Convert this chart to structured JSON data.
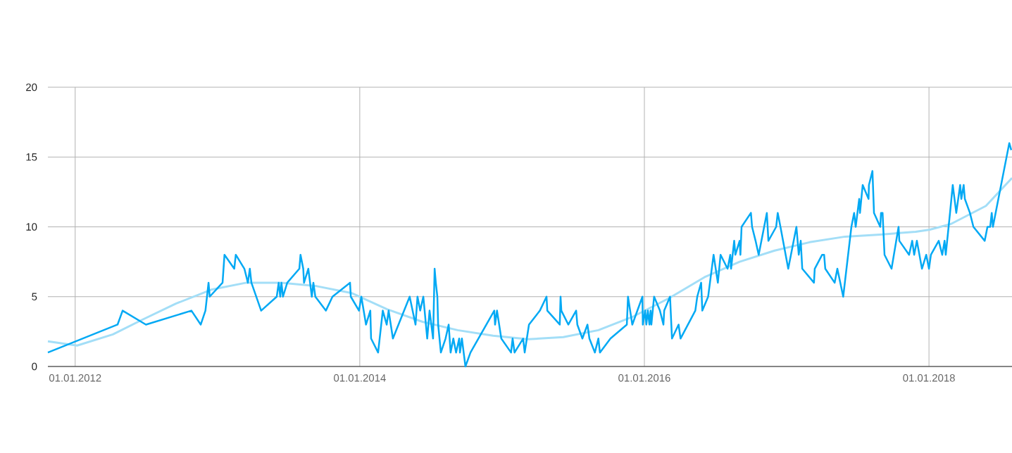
{
  "chart_data": {
    "type": "line",
    "xlim": [
      "2011-10-23",
      "2018-08-02"
    ],
    "ylim": [
      0,
      20
    ],
    "xticks": [
      {
        "value": "2012-01-01",
        "label": "01.01.2012"
      },
      {
        "value": "2014-01-01",
        "label": "01.01.2014"
      },
      {
        "value": "2016-01-01",
        "label": "01.01.2016"
      },
      {
        "value": "2018-01-01",
        "label": "01.01.2018"
      }
    ],
    "yticks": [
      0,
      5,
      10,
      15,
      20
    ],
    "grid": true,
    "series": [
      {
        "color": "#a3def7",
        "x": [
          "2011-10-23",
          "2012-01-06",
          "2012-04-07",
          "2012-06-18",
          "2012-09-16",
          "2012-12-16",
          "2013-03-16",
          "2013-06-14",
          "2013-09-13",
          "2013-12-12",
          "2014-03-12",
          "2014-06-11",
          "2014-09-09",
          "2014-12-09",
          "2015-03-09",
          "2015-06-07",
          "2015-09-05",
          "2015-12-05",
          "2016-03-05",
          "2016-06-04",
          "2016-09-02",
          "2016-12-01",
          "2017-03-01",
          "2017-05-31",
          "2017-08-29",
          "2017-11-28",
          "2018-01-03",
          "2018-02-26",
          "2018-05-27",
          "2018-08-02"
        ],
        "values": [
          1.8,
          1.5,
          2.3,
          3.3,
          4.5,
          5.5,
          6.0,
          6.0,
          5.75,
          5.25,
          4.1,
          3.2,
          2.6,
          2.2,
          1.95,
          2.1,
          2.6,
          3.6,
          4.9,
          6.4,
          7.5,
          8.3,
          8.9,
          9.3,
          9.45,
          9.65,
          9.8,
          10.2,
          11.5,
          13.5
        ]
      },
      {
        "color": "#03a9f4",
        "x": [
          "2011-10-23",
          "2012-04-19",
          "2012-05-02",
          "2012-07-01",
          "2012-10-26",
          "2012-11-19",
          "2012-12-01",
          "2012-12-09",
          "2012-12-12",
          "2013-01-14",
          "2013-01-19",
          "2013-02-13",
          "2013-02-17",
          "2013-03-11",
          "2013-03-20",
          "2013-03-25",
          "2013-03-29",
          "2013-04-23",
          "2013-06-02",
          "2013-06-07",
          "2013-06-11",
          "2013-06-14",
          "2013-06-18",
          "2013-06-29",
          "2013-07-30",
          "2013-08-02",
          "2013-08-09",
          "2013-08-11",
          "2013-08-22",
          "2013-08-31",
          "2013-09-04",
          "2013-09-09",
          "2013-10-06",
          "2013-10-23",
          "2013-12-07",
          "2013-12-09",
          "2013-12-30",
          "2014-01-05",
          "2014-01-17",
          "2014-01-28",
          "2014-01-30",
          "2014-02-17",
          "2014-03-01",
          "2014-03-11",
          "2014-03-16",
          "2014-03-27",
          "2014-05-09",
          "2014-05-24",
          "2014-05-29",
          "2014-06-05",
          "2014-06-13",
          "2014-06-23",
          "2014-06-29",
          "2014-07-08",
          "2014-07-12",
          "2014-07-15",
          "2014-07-19",
          "2014-07-21",
          "2014-07-28",
          "2014-08-09",
          "2014-08-17",
          "2014-08-22",
          "2014-08-29",
          "2014-09-05",
          "2014-09-13",
          "2014-09-15",
          "2014-09-20",
          "2014-09-29",
          "2014-10-12",
          "2014-12-12",
          "2014-12-14",
          "2014-12-19",
          "2014-12-30",
          "2015-01-24",
          "2015-01-28",
          "2015-02-02",
          "2015-02-24",
          "2015-02-28",
          "2015-03-11",
          "2015-04-08",
          "2015-04-25",
          "2015-04-27",
          "2015-05-29",
          "2015-05-31",
          "2015-06-02",
          "2015-06-20",
          "2015-07-10",
          "2015-07-13",
          "2015-07-26",
          "2015-08-08",
          "2015-08-13",
          "2015-08-27",
          "2015-09-05",
          "2015-09-09",
          "2015-10-06",
          "2015-11-17",
          "2015-11-20",
          "2015-12-01",
          "2015-12-27",
          "2015-12-28",
          "2016-01-03",
          "2016-01-06",
          "2016-01-10",
          "2016-01-14",
          "2016-01-17",
          "2016-01-19",
          "2016-01-26",
          "2016-02-10",
          "2016-02-19",
          "2016-02-21",
          "2016-03-07",
          "2016-03-12",
          "2016-03-29",
          "2016-04-03",
          "2016-05-11",
          "2016-05-16",
          "2016-05-26",
          "2016-05-29",
          "2016-06-13",
          "2016-06-27",
          "2016-07-08",
          "2016-07-15",
          "2016-08-02",
          "2016-08-09",
          "2016-08-11",
          "2016-08-19",
          "2016-08-22",
          "2016-09-02",
          "2016-09-04",
          "2016-09-07",
          "2016-10-01",
          "2016-10-04",
          "2016-10-13",
          "2016-10-21",
          "2016-11-11",
          "2016-11-15",
          "2016-12-05",
          "2016-12-09",
          "2016-12-16",
          "2017-01-05",
          "2017-01-19",
          "2017-01-26",
          "2017-02-01",
          "2017-02-06",
          "2017-02-10",
          "2017-03-12",
          "2017-03-14",
          "2017-04-02",
          "2017-04-07",
          "2017-04-10",
          "2017-05-04",
          "2017-05-11",
          "2017-05-26",
          "2017-06-16",
          "2017-06-23",
          "2017-06-27",
          "2017-07-06",
          "2017-07-08",
          "2017-07-15",
          "2017-07-30",
          "2017-07-31",
          "2017-08-09",
          "2017-08-13",
          "2017-08-29",
          "2017-08-31",
          "2017-09-04",
          "2017-09-09",
          "2017-09-27",
          "2017-10-15",
          "2017-10-17",
          "2017-11-11",
          "2017-11-19",
          "2017-11-24",
          "2017-12-01",
          "2017-12-14",
          "2017-12-25",
          "2018-01-01",
          "2018-01-06",
          "2018-01-26",
          "2018-02-04",
          "2018-02-10",
          "2018-02-13",
          "2018-02-24",
          "2018-03-03",
          "2018-03-12",
          "2018-03-22",
          "2018-03-25",
          "2018-03-31",
          "2018-04-03",
          "2018-04-16",
          "2018-04-25",
          "2018-05-24",
          "2018-05-31",
          "2018-06-07",
          "2018-06-11",
          "2018-06-14",
          "2018-07-26",
          "2018-07-31"
        ],
        "values": [
          1,
          3,
          4,
          3,
          4,
          3,
          4,
          6,
          5,
          6,
          8,
          7,
          8,
          7,
          6,
          7,
          6,
          4,
          5,
          6,
          5,
          6,
          5,
          6,
          7,
          8,
          7,
          6,
          7,
          5,
          6,
          5,
          4,
          5,
          6,
          5,
          4,
          5,
          3,
          4,
          2,
          1,
          4,
          3,
          4,
          2,
          5,
          3,
          5,
          4,
          5,
          2,
          4,
          2,
          7,
          6,
          5,
          3,
          1,
          2,
          3,
          1,
          2,
          1,
          2,
          1,
          2,
          0,
          1,
          4,
          3,
          4,
          2,
          1,
          2,
          1,
          2,
          1,
          3,
          4,
          5,
          4,
          3,
          5,
          4,
          3,
          4,
          3,
          2,
          3,
          2,
          1,
          2,
          1,
          2,
          3,
          5,
          3,
          5,
          3,
          4,
          3,
          4,
          3,
          4,
          3,
          5,
          4,
          3,
          4,
          5,
          2,
          3,
          2,
          4,
          5,
          6,
          4,
          5,
          8,
          6,
          8,
          7,
          8,
          7,
          9,
          8,
          9,
          8,
          10,
          11,
          10,
          9,
          8,
          11,
          9,
          10,
          11,
          10,
          7,
          9,
          10,
          8,
          9,
          7,
          6,
          7,
          8,
          8,
          7,
          6,
          7,
          5,
          10,
          11,
          10,
          12,
          11,
          13,
          12,
          13,
          14,
          11,
          10,
          11,
          11,
          8,
          7,
          10,
          9,
          8,
          9,
          8,
          9,
          7,
          8,
          7,
          8,
          9,
          8,
          9,
          8,
          11,
          13,
          11,
          13,
          12,
          13,
          12,
          11,
          10,
          9,
          10,
          10,
          11,
          10,
          16,
          15.5
        ]
      }
    ]
  }
}
